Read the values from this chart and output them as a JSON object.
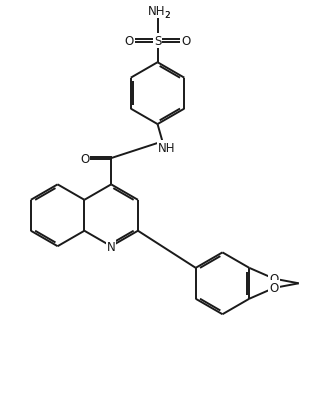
{
  "bg_color": "#ffffff",
  "line_color": "#1a1a1a",
  "line_width": 1.4,
  "dbo": 0.07,
  "fig_width": 3.12,
  "fig_height": 4.14,
  "dpi": 100,
  "font_size": 8.5,
  "font_size_sub": 6.5,
  "xlim": [
    0,
    10
  ],
  "ylim": [
    0,
    13.3
  ]
}
